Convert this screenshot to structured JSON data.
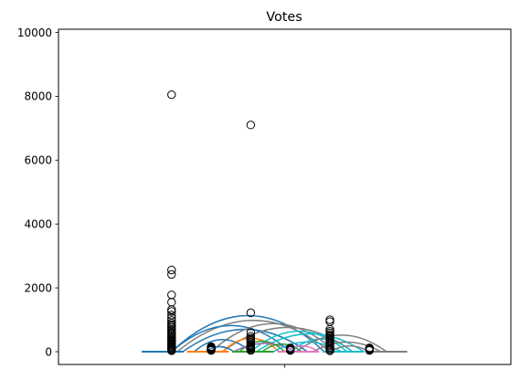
{
  "chart_data": {
    "type": "boxplot",
    "title": "Votes",
    "xlabel": "",
    "ylabel": "",
    "ylim": [
      -400,
      10100
    ],
    "yticks": [
      0,
      2000,
      4000,
      6000,
      8000,
      10000
    ],
    "xticks": [
      ""
    ],
    "grid": false,
    "outliers": [
      {
        "x": 1.0,
        "values": [
          8050,
          2560,
          2420,
          1780,
          1550,
          1320,
          1260,
          1150,
          1060,
          980,
          900,
          850,
          800,
          750,
          700,
          650,
          600,
          560,
          520,
          480,
          440,
          400,
          360,
          330,
          300,
          270,
          240,
          210,
          180,
          150,
          120,
          90,
          60,
          30
        ]
      },
      {
        "x": 1.35,
        "values": [
          160,
          140,
          120,
          100,
          80,
          60,
          40
        ]
      },
      {
        "x": 1.7,
        "values": [
          7100,
          1220,
          600,
          480,
          420,
          380,
          340,
          300,
          260,
          220,
          190,
          160,
          130,
          100,
          70,
          40
        ]
      },
      {
        "x": 2.05,
        "values": [
          120,
          100,
          80,
          60,
          40
        ]
      },
      {
        "x": 2.4,
        "values": [
          1000,
          940,
          700,
          640,
          590,
          540,
          500,
          460,
          420,
          380,
          340,
          300,
          260,
          220,
          180,
          140,
          100,
          60,
          30
        ]
      },
      {
        "x": 2.75,
        "values": [
          120,
          100,
          80,
          60,
          40
        ]
      }
    ],
    "medians": [
      {
        "x1": 0.72,
        "x2": 1.12,
        "value": 0,
        "color": "#1f77b4"
      },
      {
        "x1": 1.12,
        "x2": 1.52,
        "value": 0,
        "color": "#ff7f0e"
      },
      {
        "x1": 1.52,
        "x2": 1.92,
        "value": 0,
        "color": "#2ca02c"
      },
      {
        "x1": 1.92,
        "x2": 2.32,
        "value": 0,
        "color": "#e377c2"
      },
      {
        "x1": 2.32,
        "x2": 2.72,
        "value": 0,
        "color": "#17becf"
      },
      {
        "x1": 2.72,
        "x2": 3.1,
        "value": 0,
        "color": "#7f7f7f"
      }
    ],
    "arcs": [
      {
        "x1": 1.0,
        "x2": 2.35,
        "peak": 1130,
        "color": "#1f77b4"
      },
      {
        "x1": 1.05,
        "x2": 2.4,
        "peak": 980,
        "color": "#7f7f7f"
      },
      {
        "x1": 1.0,
        "x2": 2.05,
        "peak": 820,
        "color": "#1f77b4"
      },
      {
        "x1": 1.1,
        "x2": 2.2,
        "peak": 700,
        "color": "#1f77b4"
      },
      {
        "x1": 1.35,
        "x2": 2.45,
        "peak": 880,
        "color": "#7f7f7f"
      },
      {
        "x1": 1.45,
        "x2": 2.6,
        "peak": 760,
        "color": "#7f7f7f"
      },
      {
        "x1": 1.7,
        "x2": 2.55,
        "peak": 640,
        "color": "#17becf"
      },
      {
        "x1": 1.75,
        "x2": 2.7,
        "peak": 560,
        "color": "#17becf"
      },
      {
        "x1": 1.2,
        "x2": 1.7,
        "peak": 380,
        "color": "#1f77b4"
      },
      {
        "x1": 1.45,
        "x2": 1.95,
        "peak": 420,
        "color": "#ff7f0e"
      },
      {
        "x1": 1.6,
        "x2": 2.0,
        "peak": 330,
        "color": "#2ca02c"
      },
      {
        "x1": 1.55,
        "x2": 2.1,
        "peak": 260,
        "color": "#9467bd"
      },
      {
        "x1": 1.8,
        "x2": 2.15,
        "peak": 240,
        "color": "#2ca02c"
      },
      {
        "x1": 1.9,
        "x2": 2.5,
        "peak": 300,
        "color": "#17becf"
      },
      {
        "x1": 2.05,
        "x2": 2.6,
        "peak": 400,
        "color": "#17becf"
      },
      {
        "x1": 2.1,
        "x2": 2.9,
        "peak": 520,
        "color": "#7f7f7f"
      },
      {
        "x1": 2.25,
        "x2": 2.85,
        "peak": 300,
        "color": "#7f7f7f"
      },
      {
        "x1": 2.0,
        "x2": 2.3,
        "peak": 180,
        "color": "#e377c2"
      },
      {
        "x1": 1.3,
        "x2": 1.55,
        "peak": 160,
        "color": "#1f77b4"
      },
      {
        "x1": 2.4,
        "x2": 2.75,
        "peak": 180,
        "color": "#7f7f7f"
      }
    ]
  }
}
